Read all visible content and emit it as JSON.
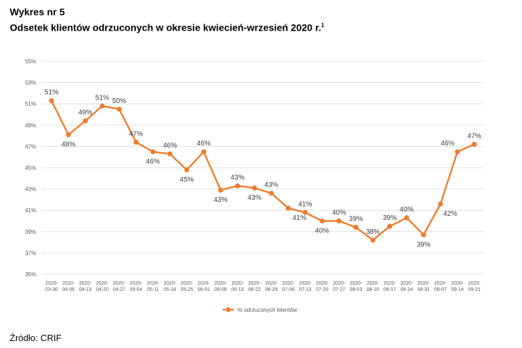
{
  "header": {
    "label": "Wykres nr 5",
    "title": "Odsetek klientów odrzuconych w okresie kwiecień-wrzesień 2020 r.",
    "footnote_mark": "1"
  },
  "source": "Źródło: CRIF",
  "colors": {
    "series": "#ed7d31",
    "grid": "#d9d9d9",
    "axis_text": "#595959"
  },
  "chart_data": {
    "type": "line",
    "x": [
      "2020-03-30",
      "2020-04-06",
      "2020-04-13",
      "2020-04-20",
      "2020-04-27",
      "2020-05-04",
      "2020-05-11",
      "2020-05-18",
      "2020-05-25",
      "2020-06-01",
      "2020-06-08",
      "2020-06-15",
      "2020-06-22",
      "2020-06-29",
      "2020-07-06",
      "2020-07-13",
      "2020-07-20",
      "2020-07-27",
      "2020-08-03",
      "2020-08-10",
      "2020-08-17",
      "2020-08-24",
      "2020-08-31",
      "2020-09-07",
      "2020-09-14",
      "2020-09-21"
    ],
    "series": [
      {
        "name": "% odrzuconych klientów",
        "values": [
          51.3,
          48.1,
          49.4,
          50.8,
          50.5,
          47.4,
          46.5,
          46.3,
          44.8,
          46.5,
          42.9,
          43.3,
          43.1,
          42.6,
          41.2,
          40.8,
          40.0,
          40.0,
          39.4,
          38.2,
          39.5,
          40.3,
          38.7,
          41.6,
          46.5,
          47.2
        ],
        "labels": [
          "51%",
          "48%",
          "49%",
          "51%",
          "50%",
          "47%",
          "46%",
          "46%",
          "45%",
          "46%",
          "43%",
          "43%",
          "43%",
          "43%",
          "41%",
          "41%",
          "40%",
          "40%",
          "39%",
          "38%",
          "39%",
          "40%",
          "39%",
          "42%",
          "46%",
          "47%"
        ]
      }
    ],
    "y_ticks": [
      "35%",
      "37%",
      "39%",
      "41%",
      "43%",
      "45%",
      "47%",
      "49%",
      "51%",
      "53%",
      "55%"
    ],
    "ylim": [
      35,
      55
    ],
    "grid": true,
    "legend_position": "bottom"
  }
}
